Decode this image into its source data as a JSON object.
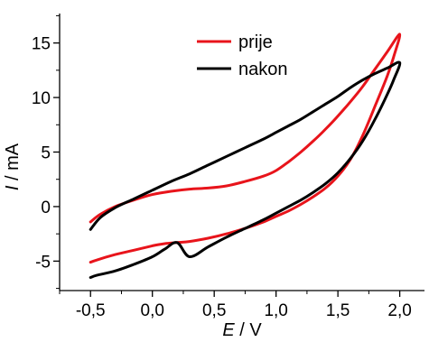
{
  "chart_data": {
    "type": "line",
    "title": "",
    "xlabel": "E",
    "xlabel_unit": " / V",
    "ylabel": "I",
    "ylabel_unit": " / mA",
    "xlim": [
      -0.75,
      2.2
    ],
    "ylim": [
      -7.7,
      17.7
    ],
    "x_ticks": [
      -0.5,
      0.0,
      0.5,
      1.0,
      1.5,
      2.0
    ],
    "x_tick_labels": [
      "-0,5",
      "0,0",
      "0,5",
      "1,0",
      "1,5",
      "2,0"
    ],
    "y_ticks": [
      -5,
      0,
      5,
      10,
      15
    ],
    "y_tick_labels": [
      "-5",
      "0",
      "5",
      "10",
      "15"
    ],
    "grid": false,
    "legend_position": "top-center",
    "series": [
      {
        "name": "prije",
        "color": "#e8141b",
        "x": [
          -0.5,
          -0.42,
          -0.3,
          -0.15,
          0.0,
          0.15,
          0.3,
          0.45,
          0.6,
          0.75,
          0.9,
          1.0,
          1.1,
          1.2,
          1.3,
          1.4,
          1.5,
          1.6,
          1.7,
          1.8,
          1.9,
          2.0,
          1.95,
          1.9,
          1.8,
          1.7,
          1.6,
          1.5,
          1.4,
          1.3,
          1.2,
          1.1,
          1.0,
          0.9,
          0.75,
          0.6,
          0.45,
          0.3,
          0.2,
          0.1,
          0.0,
          -0.15,
          -0.3,
          -0.45,
          -0.5
        ],
        "y": [
          -1.4,
          -0.7,
          0.0,
          0.6,
          1.1,
          1.4,
          1.6,
          1.7,
          1.9,
          2.3,
          2.8,
          3.3,
          4.1,
          5.0,
          6.0,
          7.1,
          8.3,
          9.6,
          11.0,
          12.6,
          14.2,
          15.8,
          13.7,
          12.0,
          9.2,
          6.5,
          4.3,
          2.8,
          1.7,
          0.9,
          0.2,
          -0.4,
          -0.9,
          -1.4,
          -2.0,
          -2.5,
          -2.9,
          -3.2,
          -3.3,
          -3.4,
          -3.6,
          -4.0,
          -4.4,
          -4.9,
          -5.1
        ]
      },
      {
        "name": "nakon",
        "color": "#000000",
        "x": [
          -0.5,
          -0.42,
          -0.3,
          -0.15,
          0.0,
          0.15,
          0.3,
          0.45,
          0.6,
          0.75,
          0.9,
          1.0,
          1.1,
          1.2,
          1.3,
          1.4,
          1.5,
          1.6,
          1.7,
          1.8,
          1.9,
          2.0,
          1.95,
          1.9,
          1.8,
          1.7,
          1.6,
          1.5,
          1.4,
          1.3,
          1.2,
          1.1,
          1.0,
          0.9,
          0.75,
          0.6,
          0.45,
          0.3,
          0.2,
          0.1,
          0.0,
          -0.15,
          -0.3,
          -0.45,
          -0.5
        ],
        "y": [
          -2.1,
          -1.0,
          -0.1,
          0.7,
          1.5,
          2.3,
          3.0,
          3.8,
          4.6,
          5.4,
          6.2,
          6.8,
          7.4,
          8.0,
          8.7,
          9.4,
          10.1,
          10.9,
          11.6,
          12.2,
          12.7,
          13.2,
          11.6,
          10.3,
          8.0,
          6.0,
          4.4,
          3.1,
          2.1,
          1.3,
          0.6,
          0.0,
          -0.6,
          -1.2,
          -2.0,
          -2.8,
          -3.7,
          -4.6,
          -3.3,
          -3.9,
          -4.6,
          -5.3,
          -5.9,
          -6.3,
          -6.5
        ]
      }
    ]
  }
}
